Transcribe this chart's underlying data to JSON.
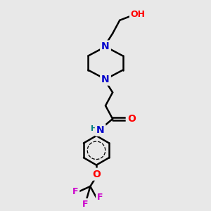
{
  "background_color": "#e8e8e8",
  "bond_color": "#000000",
  "N_color": "#0000cc",
  "O_color": "#ff0000",
  "F_color": "#cc00cc",
  "H_color": "#008080",
  "line_width": 1.8,
  "figsize": [
    3.0,
    3.0
  ],
  "dpi": 100,
  "xlim": [
    0,
    10
  ],
  "ylim": [
    0,
    10
  ]
}
